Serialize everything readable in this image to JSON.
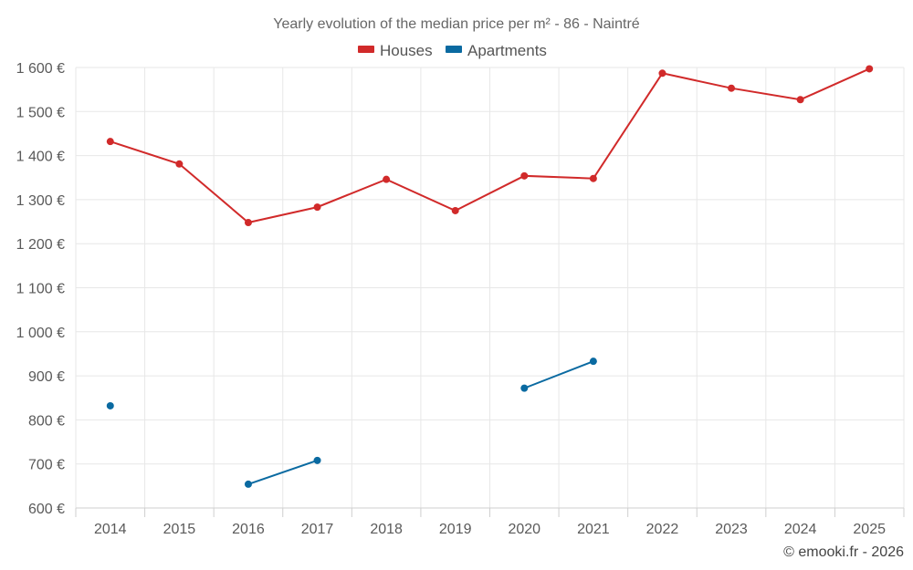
{
  "chart_data": {
    "type": "line",
    "title": "Yearly evolution of the median price per m² - 86 - Naintré",
    "categories": [
      "2014",
      "2015",
      "2016",
      "2017",
      "2018",
      "2019",
      "2020",
      "2021",
      "2022",
      "2023",
      "2024",
      "2025"
    ],
    "ylim": [
      600,
      1600
    ],
    "yticks": [
      600,
      700,
      800,
      900,
      1000,
      1100,
      1200,
      1300,
      1400,
      1500,
      1600
    ],
    "ytick_labels": [
      "600 €",
      "700 €",
      "800 €",
      "900 €",
      "1 000 €",
      "1 100 €",
      "1 200 €",
      "1 300 €",
      "1 400 €",
      "1 500 €",
      "1 600 €"
    ],
    "xlabel": "",
    "ylabel": "",
    "grid": true,
    "legend_position": "top-center",
    "series": [
      {
        "name": "Houses",
        "color": "#d12a2a",
        "values": [
          1432,
          1381,
          1248,
          1283,
          1346,
          1275,
          1354,
          1348,
          1587,
          1553,
          1527,
          1597
        ]
      },
      {
        "name": "Apartments",
        "color": "#0a6aa1",
        "values": [
          832,
          null,
          654,
          708,
          null,
          null,
          872,
          933,
          null,
          null,
          null,
          null
        ]
      }
    ]
  },
  "credit": "© emooki.fr - 2026"
}
